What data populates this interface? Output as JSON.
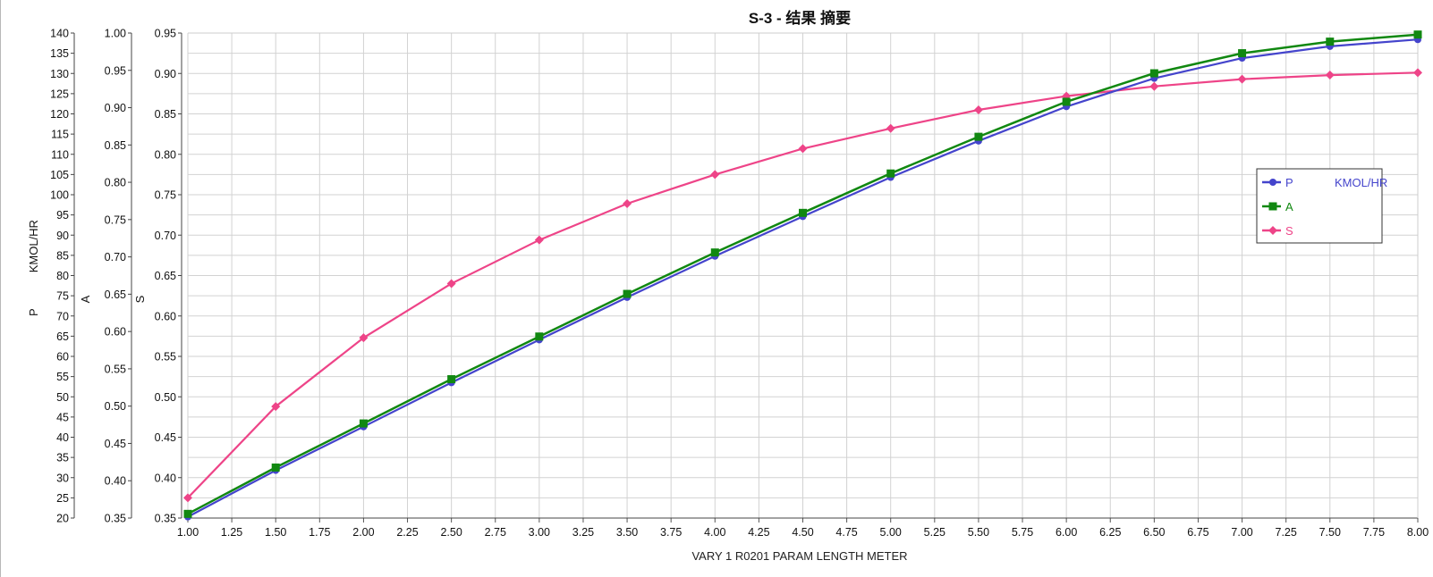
{
  "chart_data": {
    "type": "line",
    "title": "S-3 - 结果 摘要",
    "xlabel": "VARY   1 R0201    PARAM    LENGTH    METER",
    "x": [
      1.0,
      1.5,
      2.0,
      2.5,
      3.0,
      3.5,
      4.0,
      4.5,
      5.0,
      5.5,
      6.0,
      6.5,
      7.0,
      7.5,
      8.0
    ],
    "xlim": [
      1.0,
      8.0
    ],
    "x_ticks": [
      "1.00",
      "1.25",
      "1.50",
      "1.75",
      "2.00",
      "2.25",
      "2.50",
      "2.75",
      "3.00",
      "3.25",
      "3.50",
      "3.75",
      "4.00",
      "4.25",
      "4.50",
      "4.75",
      "5.00",
      "5.25",
      "5.50",
      "5.75",
      "6.00",
      "6.25",
      "6.50",
      "6.75",
      "7.00",
      "7.25",
      "7.50",
      "7.75",
      "8.00"
    ],
    "grid": true,
    "legend_position": "right",
    "legend_unit": "KMOL/HR",
    "y_axes": [
      {
        "id": "P",
        "label_name": "P",
        "label_unit": "KMOL/HR",
        "ylim": [
          20,
          140
        ],
        "ticks": [
          "20",
          "25",
          "30",
          "35",
          "40",
          "45",
          "50",
          "55",
          "60",
          "65",
          "70",
          "75",
          "80",
          "85",
          "90",
          "95",
          "100",
          "105",
          "110",
          "115",
          "120",
          "125",
          "130",
          "135",
          "140"
        ]
      },
      {
        "id": "A",
        "label_name": "A",
        "ylim": [
          0.35,
          1.0
        ],
        "ticks": [
          "0.35",
          "0.40",
          "0.45",
          "0.50",
          "0.55",
          "0.60",
          "0.65",
          "0.70",
          "0.75",
          "0.80",
          "0.85",
          "0.90",
          "0.95",
          "1.00"
        ]
      },
      {
        "id": "S",
        "label_name": "S",
        "ylim": [
          0.35,
          0.95
        ],
        "ticks": [
          "0.35",
          "0.40",
          "0.45",
          "0.50",
          "0.55",
          "0.60",
          "0.65",
          "0.70",
          "0.75",
          "0.80",
          "0.85",
          "0.90",
          "0.95"
        ]
      }
    ],
    "series": [
      {
        "name": "P",
        "axis": "P",
        "color": "#4444cc",
        "marker": "circle",
        "values": [
          20.3,
          31.8,
          42.6,
          53.5,
          64.1,
          74.6,
          84.8,
          94.6,
          104.3,
          113.3,
          121.8,
          128.8,
          133.8,
          136.7,
          138.4
        ]
      },
      {
        "name": "A",
        "axis": "A",
        "color": "#118811",
        "marker": "square",
        "values": [
          0.3556,
          0.4177,
          0.4768,
          0.5361,
          0.5933,
          0.6504,
          0.7059,
          0.759,
          0.8118,
          0.861,
          0.9079,
          0.9461,
          0.973,
          0.9885,
          0.998
        ]
      },
      {
        "name": "S",
        "axis": "S",
        "color": "#ee4488",
        "marker": "diamond",
        "values": [
          0.375,
          0.488,
          0.573,
          0.64,
          0.694,
          0.739,
          0.775,
          0.807,
          0.832,
          0.855,
          0.872,
          0.884,
          0.893,
          0.898,
          0.901
        ]
      }
    ]
  }
}
